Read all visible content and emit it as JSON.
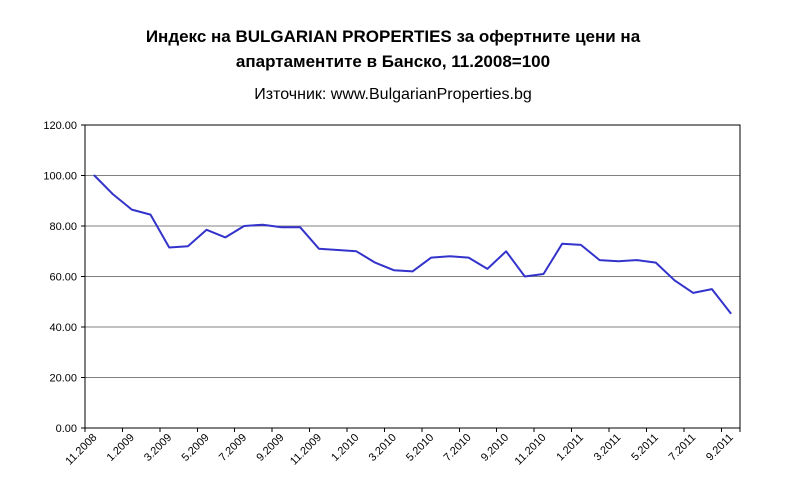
{
  "chart_data": {
    "type": "line",
    "title": "Индекс на BULGARIAN PROPERTIES за офертните цени на апартаментите в Банско, 11.2008=100",
    "title_lines": [
      "Индекс на BULGARIAN PROPERTIES за офертните цени на",
      "апартаментите в Банско, 11.2008=100"
    ],
    "subtitle": "Източник: www.BulgarianProperties.bg",
    "x": [
      "11.2008",
      "12.2008",
      "1.2009",
      "2.2009",
      "3.2009",
      "4.2009",
      "5.2009",
      "6.2009",
      "7.2009",
      "8.2009",
      "9.2009",
      "10.2009",
      "11.2009",
      "12.2009",
      "1.2010",
      "2.2010",
      "3.2010",
      "4.2010",
      "5.2010",
      "6.2010",
      "7.2010",
      "8.2010",
      "9.2010",
      "10.2010",
      "11.2010",
      "12.2010",
      "1.2011",
      "2.2011",
      "3.2011",
      "4.2011",
      "5.2011",
      "6.2011",
      "7.2011",
      "8.2011",
      "9.2011"
    ],
    "x_tick_labels": [
      "11.2008",
      "1.2009",
      "3.2009",
      "5.2009",
      "7.2009",
      "9.2009",
      "11.2009",
      "1.2010",
      "3.2010",
      "5.2010",
      "7.2010",
      "9.2010",
      "11.2010",
      "1.2011",
      "3.2011",
      "5.2011",
      "7.2011",
      "9.2011"
    ],
    "x_label_every": 2,
    "values": [
      100,
      92.5,
      86.5,
      84.5,
      71.5,
      72,
      78.5,
      75.5,
      80,
      80.5,
      79.5,
      79.5,
      71,
      70.5,
      70,
      65.5,
      62.5,
      62,
      67.5,
      68,
      67.5,
      63,
      70,
      60,
      61,
      73,
      72.5,
      66.5,
      66,
      66.5,
      65.5,
      58.5,
      53.5,
      55,
      45.5
    ],
    "ylim": [
      0,
      120
    ],
    "y_ticks": [
      0,
      20,
      40,
      60,
      80,
      100,
      120
    ],
    "y_tick_labels": [
      "0.00",
      "20.00",
      "40.00",
      "60.00",
      "80.00",
      "100.00",
      "120.00"
    ],
    "grid": "horizontal",
    "legend": "none",
    "line_color": "#3333CC",
    "grid_color": "#808080",
    "axis_color": "#000000"
  }
}
